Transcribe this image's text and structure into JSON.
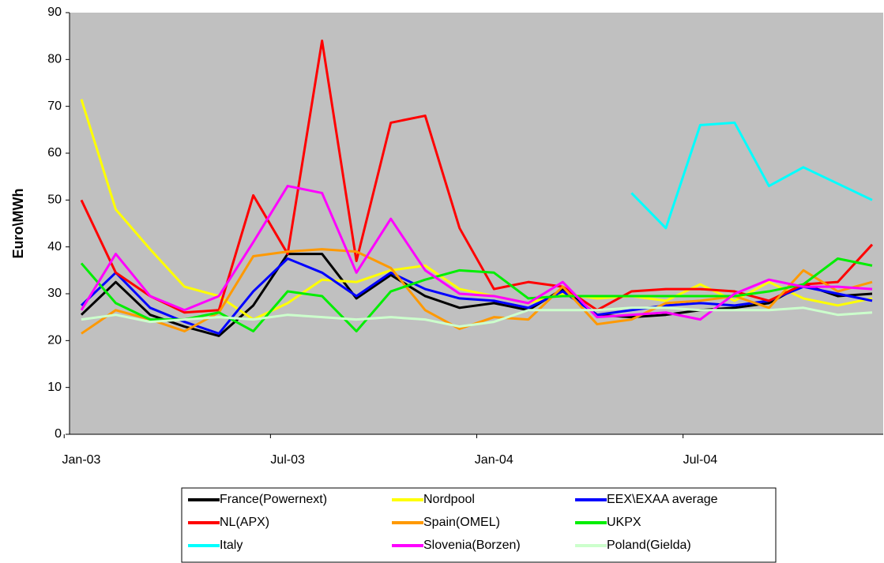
{
  "chart_data": {
    "type": "line",
    "ylabel": "Euro\\MWh",
    "categories": [
      "Jan-03",
      null,
      null,
      null,
      null,
      null,
      "Jul-03",
      null,
      null,
      null,
      null,
      null,
      "Jan-04",
      null,
      null,
      null,
      null,
      null,
      "Jul-04",
      null,
      null,
      null,
      null,
      null
    ],
    "ylim": [
      0,
      90
    ],
    "yticks": [
      0,
      10,
      20,
      30,
      40,
      50,
      60,
      70,
      80,
      90
    ],
    "legend": "bottom",
    "series": [
      {
        "name": "France(Powernext)",
        "color": "#000000",
        "values": [
          25.5,
          32.5,
          25.5,
          23,
          21,
          27.5,
          38.5,
          38.5,
          29,
          34,
          29.5,
          27,
          28,
          26.5,
          31,
          25.5,
          25,
          25.5,
          26.5,
          27,
          28,
          32,
          29.5,
          30
        ]
      },
      {
        "name": "Nordpool",
        "color": "#ffff00",
        "values": [
          71.5,
          48,
          39.5,
          31.5,
          29.5,
          24.5,
          28,
          33,
          32.5,
          35,
          36,
          31,
          29.5,
          28,
          30,
          29,
          29.5,
          28.5,
          32,
          28.5,
          32.5,
          29,
          27.5,
          29
        ]
      },
      {
        "name": "EEX\\EXAA average",
        "color": "#0000ff",
        "values": [
          27.5,
          34.5,
          27,
          24,
          21.5,
          30.5,
          37.5,
          34.5,
          29.5,
          34.5,
          31,
          29,
          28.5,
          27,
          30.5,
          25.5,
          26.5,
          27.5,
          28,
          27.5,
          28.5,
          31.5,
          30,
          28.5
        ]
      },
      {
        "name": "NL(APX)",
        "color": "#ff0000",
        "values": [
          50,
          34.5,
          29.5,
          26,
          26.5,
          51,
          38.5,
          84,
          37,
          66.5,
          68,
          44,
          31,
          32.5,
          31.5,
          26.5,
          30.5,
          31,
          31,
          30.5,
          28.5,
          32,
          32.5,
          40.5
        ]
      },
      {
        "name": "Spain(OMEL)",
        "color": "#ff9900",
        "values": [
          21.5,
          26.5,
          24.5,
          22,
          26,
          38,
          39,
          39.5,
          39,
          35.5,
          26.5,
          22.5,
          25,
          24.5,
          31.5,
          23.5,
          24.5,
          28,
          28.5,
          29.5,
          27,
          35,
          30.5,
          32.5
        ]
      },
      {
        "name": "UKPX",
        "color": "#00ee00",
        "values": [
          36.5,
          28,
          24.5,
          24.5,
          26,
          22,
          30.5,
          29.5,
          22,
          30.5,
          33,
          35,
          34.5,
          29,
          29.5,
          29.5,
          29.5,
          29.5,
          29.5,
          29.5,
          30.5,
          32,
          37.5,
          36
        ]
      },
      {
        "name": "Italy",
        "color": "#00ffff",
        "values": [
          null,
          null,
          null,
          null,
          null,
          null,
          null,
          null,
          null,
          null,
          null,
          null,
          null,
          null,
          null,
          null,
          51.5,
          44,
          66,
          66.5,
          53,
          57,
          53.5,
          50
        ]
      },
      {
        "name": "Slovenia(Borzen)",
        "color": "#ff00ff",
        "values": [
          26.5,
          38.5,
          29.5,
          26.5,
          29.5,
          41,
          53,
          51.5,
          34.5,
          46,
          35,
          30,
          29.5,
          28,
          32.5,
          25,
          25.5,
          26,
          24.5,
          30,
          33,
          31.5,
          31.5,
          31
        ]
      },
      {
        "name": "Poland(Gielda)",
        "color": "#ccffcc",
        "values": [
          24.5,
          25.5,
          24,
          24.5,
          25,
          24.5,
          25.5,
          25,
          24.5,
          25,
          24.5,
          23,
          24,
          26.5,
          26.5,
          26.5,
          27,
          27,
          26.5,
          26.5,
          26.5,
          27,
          25.5,
          26
        ]
      }
    ]
  }
}
